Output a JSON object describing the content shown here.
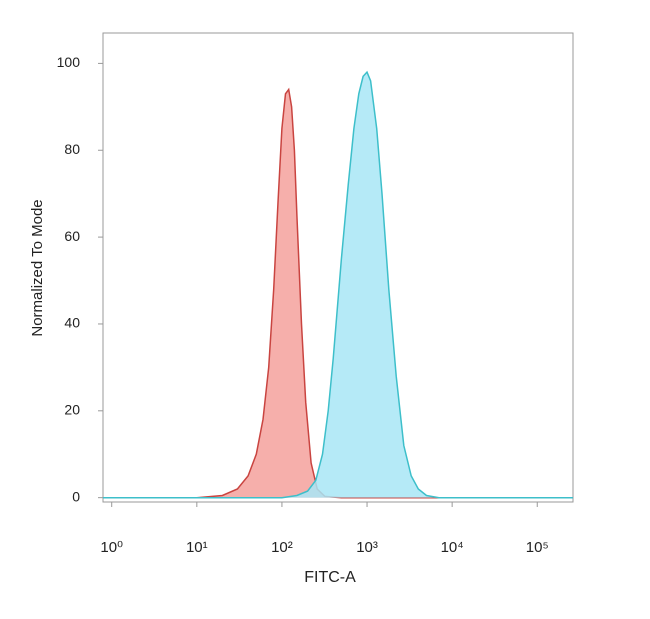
{
  "chart_data": {
    "type": "histogram-overlay",
    "xlabel": "FITC-A",
    "ylabel": "Normalized To Mode",
    "xscale": "log",
    "xlim": [
      0.79,
      263000
    ],
    "ylim": [
      -1,
      107
    ],
    "xticks": [
      {
        "value": 1,
        "label": "10⁰"
      },
      {
        "value": 10,
        "label": "10¹"
      },
      {
        "value": 100,
        "label": "10²"
      },
      {
        "value": 1000,
        "label": "10³"
      },
      {
        "value": 10000,
        "label": "10⁴"
      },
      {
        "value": 100000,
        "label": "10⁵"
      }
    ],
    "yticks": [
      0,
      20,
      40,
      60,
      80,
      100
    ],
    "series": [
      {
        "color": "#c94440",
        "fill": "#f4a19c",
        "x": [
          0.79,
          10,
          20,
          30,
          40,
          50,
          60,
          70,
          80,
          90,
          100,
          110,
          120,
          130,
          140,
          150,
          170,
          190,
          220,
          260,
          320,
          500,
          263000
        ],
        "values": [
          0,
          0,
          0.5,
          2,
          5,
          10,
          18,
          30,
          48,
          68,
          85,
          93,
          94,
          90,
          80,
          65,
          40,
          22,
          8,
          2,
          0.3,
          0,
          0
        ]
      },
      {
        "color": "#3dbfca",
        "fill": "#a8e6f6",
        "x": [
          0.79,
          100,
          150,
          200,
          250,
          300,
          350,
          400,
          500,
          600,
          700,
          800,
          900,
          1000,
          1100,
          1300,
          1500,
          1800,
          2200,
          2700,
          3300,
          4000,
          5000,
          7000,
          263000
        ],
        "values": [
          0,
          0,
          0.5,
          1.5,
          4,
          10,
          20,
          32,
          55,
          72,
          85,
          93,
          97,
          98,
          96,
          85,
          70,
          48,
          28,
          12,
          5,
          2,
          0.5,
          0,
          0
        ]
      }
    ]
  }
}
